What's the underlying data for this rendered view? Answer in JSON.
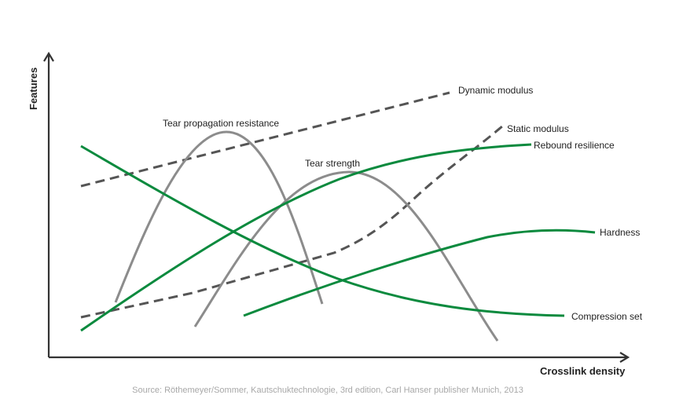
{
  "axes": {
    "y_label": "Features",
    "x_label": "Crosslink density"
  },
  "colors": {
    "axis": "#333333",
    "green": "#0b8a3e",
    "gray": "#8c8c8c",
    "dark_dashed": "#555555",
    "source_text": "#a8a8a8"
  },
  "curves": [
    {
      "id": "dynamic-modulus",
      "label": "Dynamic modulus",
      "color": "dark_dashed",
      "style": "dashed"
    },
    {
      "id": "static-modulus",
      "label": "Static modulus",
      "color": "dark_dashed",
      "style": "dashed"
    },
    {
      "id": "rebound-resilience",
      "label": "Rebound resilience",
      "color": "green",
      "style": "solid"
    },
    {
      "id": "hardness",
      "label": "Hardness",
      "color": "green",
      "style": "solid"
    },
    {
      "id": "compression-set",
      "label": "Compression set",
      "color": "green",
      "style": "solid"
    },
    {
      "id": "tear-propagation-resistance",
      "label": "Tear propagation resistance",
      "color": "gray",
      "style": "solid"
    },
    {
      "id": "tear-strength",
      "label": "Tear strength",
      "color": "gray",
      "style": "solid"
    }
  ],
  "source": "Source: Röthemeyer/Sommer, Kautschuktechnologie, 3rd edition, Carl Hanser publisher Munich, 2013"
}
